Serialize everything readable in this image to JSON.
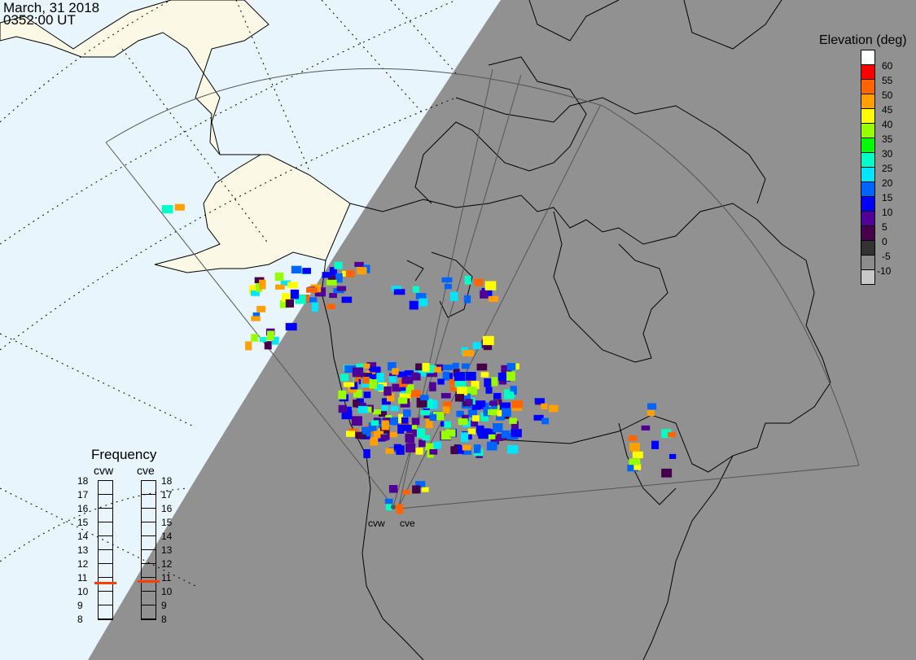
{
  "header": {
    "date": "March, 31 2018",
    "time": "0352:00 UT"
  },
  "legend": {
    "title": "Elevation (deg)",
    "ticks": [
      "60",
      "55",
      "50",
      "45",
      "40",
      "35",
      "30",
      "25",
      "20",
      "15",
      "10",
      "5",
      "0",
      "-5",
      "-10"
    ],
    "colors": [
      "#ffffff",
      "#ff0000",
      "#ff6400",
      "#ffa000",
      "#ffff00",
      "#96ff00",
      "#00ff00",
      "#00ffc8",
      "#00e6ff",
      "#0064ff",
      "#0000ff",
      "#500096",
      "#46004b",
      "#323232",
      "#8c8c8c",
      "#c8c8c8"
    ]
  },
  "frequency": {
    "title": "Frequency",
    "unit_ticks": [
      "18",
      "17",
      "16",
      "15",
      "14",
      "13",
      "12",
      "11",
      "10",
      "9",
      "8"
    ],
    "radars": [
      {
        "name": "cvw",
        "value_mhz": 10.6
      },
      {
        "name": "cve",
        "value_mhz": 10.7
      }
    ],
    "marker_color": "#ff3c00"
  },
  "map": {
    "ocean_color": "#e8f5fd",
    "day_land_color": "#fbf9e6",
    "night_color": "#919191",
    "site_labels": [
      "cvw",
      "cve"
    ]
  }
}
